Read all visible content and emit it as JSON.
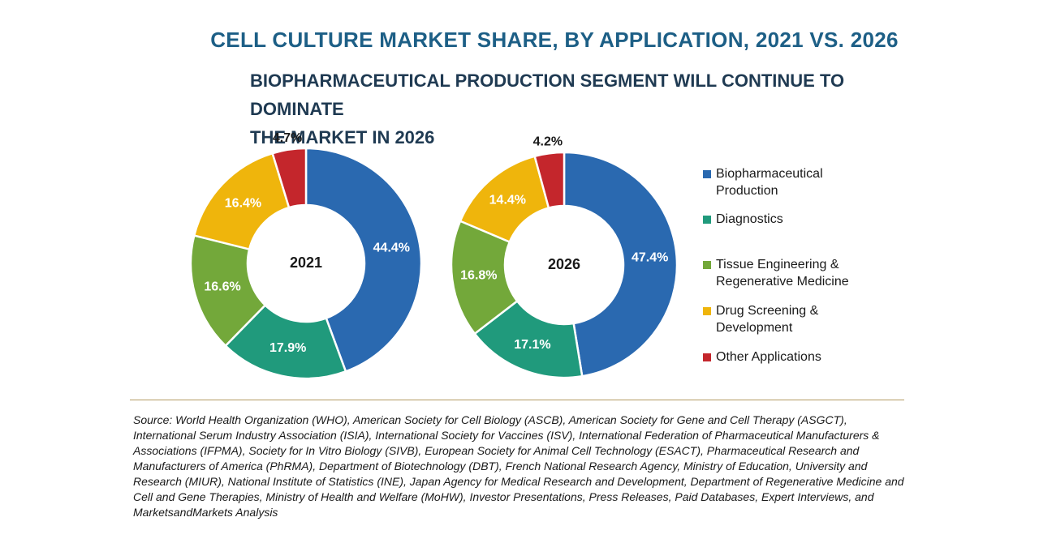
{
  "title": "CELL CULTURE MARKET SHARE, BY APPLICATION, 2021 VS. 2026",
  "subtitle_lines": [
    "BIOPHARMACEUTICAL PRODUCTION SEGMENT WILL CONTINUE TO DOMINATE",
    "THE MARKET IN 2026"
  ],
  "legend": [
    {
      "label": "Biopharmaceutical Production",
      "color": "#2a69b0"
    },
    {
      "label": "Diagnostics",
      "color": "#209a7c"
    },
    {
      "label": "Tissue Engineering & Regenerative Medicine",
      "color": "#73a83a"
    },
    {
      "label": "Drug Screening & Development",
      "color": "#efb50c"
    },
    {
      "label": "Other Applications",
      "color": "#c4262c"
    }
  ],
  "chart_data": [
    {
      "type": "pie",
      "subtype": "donut",
      "center_label": "2021",
      "categories": [
        "Biopharmaceutical Production",
        "Diagnostics",
        "Tissue Engineering & Regenerative Medicine",
        "Drug Screening & Development",
        "Other Applications"
      ],
      "values": [
        44.4,
        17.9,
        16.6,
        16.4,
        4.7
      ],
      "labels": [
        "44.4%",
        "17.9%",
        "16.6%",
        "16.4%",
        "4.7%"
      ],
      "colors": [
        "#2a69b0",
        "#209a7c",
        "#73a83a",
        "#efb50c",
        "#c4262c"
      ]
    },
    {
      "type": "pie",
      "subtype": "donut",
      "center_label": "2026",
      "categories": [
        "Biopharmaceutical Production",
        "Diagnostics",
        "Tissue Engineering & Regenerative Medicine",
        "Drug Screening & Development",
        "Other Applications"
      ],
      "values": [
        47.4,
        17.1,
        16.8,
        14.4,
        4.2
      ],
      "labels": [
        "47.4%",
        "17.1%",
        "16.8%",
        "14.4%",
        "4.2%"
      ],
      "colors": [
        "#2a69b0",
        "#209a7c",
        "#73a83a",
        "#efb50c",
        "#c4262c"
      ]
    }
  ],
  "source": "Source: World Health Organization (WHO), American Society for Cell Biology (ASCB), American Society for Gene and Cell Therapy (ASGCT), International Serum Industry Association (ISIA), International Society for Vaccines (ISV), International Federation of Pharmaceutical Manufacturers & Associations (IFPMA), Society for In Vitro Biology (SIVB), European Society for Animal Cell Technology (ESACT), Pharmaceutical Research and Manufacturers of America (PhRMA), Department of Biotechnology (DBT), French National Research Agency, Ministry of Education, University and Research (MIUR), National Institute of Statistics (INE), Japan Agency for Medical Research and Development, Department of Regenerative Medicine and Cell and Gene Therapies, Ministry of Health and Welfare (MoHW), Investor Presentations, Press Releases, Paid Databases, Expert Interviews, and MarketsandMarkets Analysis"
}
